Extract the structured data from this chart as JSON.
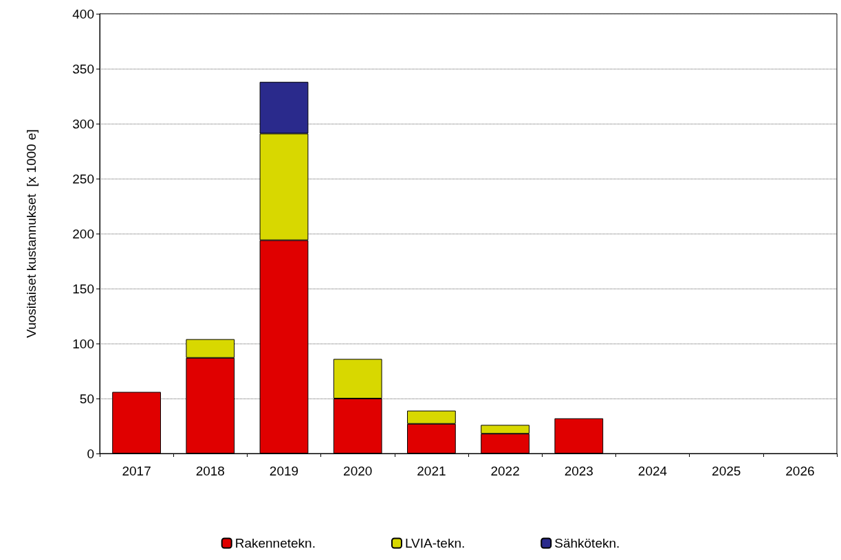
{
  "chart_data": {
    "type": "bar",
    "stacked": true,
    "ylabel": "Vuositaiset kustannukset  [x 1000 e]",
    "categories": [
      "2017",
      "2018",
      "2019",
      "2020",
      "2021",
      "2022",
      "2023",
      "2024",
      "2025",
      "2026"
    ],
    "series": [
      {
        "name": "Rakennetekn.",
        "color": "#e00000",
        "values": [
          56,
          87,
          194,
          50,
          27,
          18,
          32,
          null,
          null,
          null
        ]
      },
      {
        "name": "LVIA-tekn.",
        "color": "#d8d800",
        "values": [
          null,
          17,
          97,
          36,
          12,
          8,
          null,
          null,
          null,
          null
        ]
      },
      {
        "name": "Sähkötekn.",
        "color": "#2a2a8c",
        "values": [
          null,
          null,
          47,
          null,
          null,
          null,
          null,
          null,
          null,
          null
        ]
      }
    ],
    "ylim": [
      0,
      400
    ],
    "yticks": [
      0,
      50,
      100,
      150,
      200,
      250,
      300,
      350,
      400
    ],
    "grid": "y",
    "legend": "bottom"
  }
}
